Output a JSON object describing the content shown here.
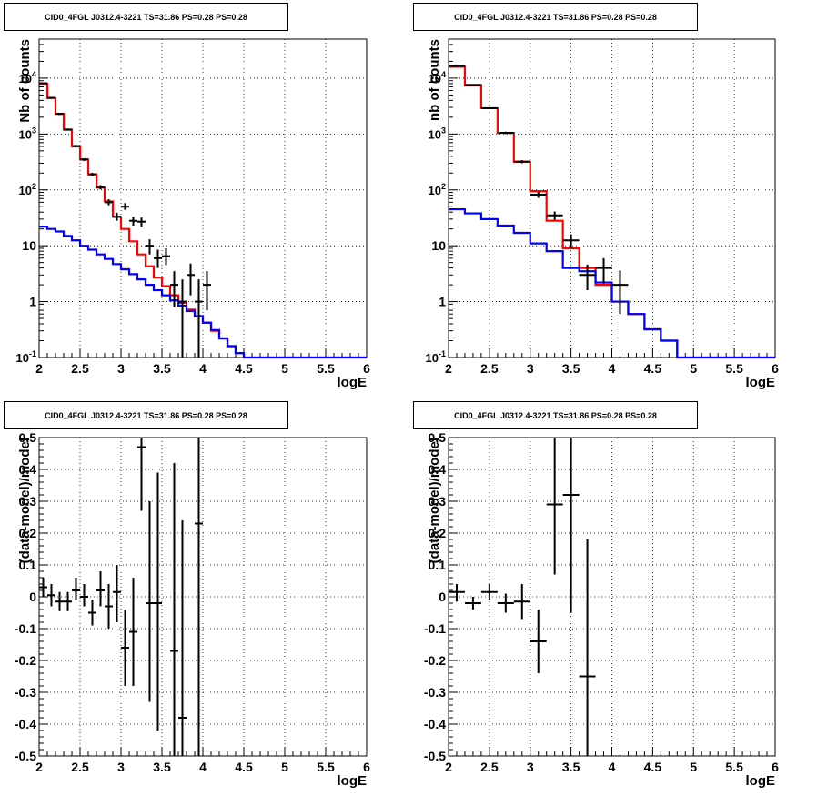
{
  "pads": [
    {
      "title": "CID0_4FGL J0312.4-3221 TS=31.86 PS=0.28 PS=0.28",
      "chart_data": {
        "type": "line",
        "xlabel": "logE",
        "ylabel": "Nb of counts",
        "xlim": [
          2,
          6
        ],
        "ylim": [
          0.1,
          50000
        ],
        "yscale": "log",
        "grid": true,
        "x_ticks": [
          "2",
          "2.5",
          "3",
          "3.5",
          "4",
          "4.5",
          "5",
          "5.5",
          "6"
        ],
        "y_ticks": [
          "10^-1",
          "1",
          "10",
          "10^2",
          "10^3",
          "10^4"
        ],
        "bin_edges": [
          2.0,
          2.1,
          2.2,
          2.3,
          2.4,
          2.5,
          2.6,
          2.7,
          2.8,
          2.9,
          3.0,
          3.1,
          3.2,
          3.3,
          3.4,
          3.5,
          3.6,
          3.7,
          3.8,
          3.9,
          4.0,
          4.1,
          4.2,
          4.3,
          4.4,
          4.5,
          4.6,
          4.7,
          4.8,
          4.9,
          5.0,
          5.1,
          5.2,
          5.3,
          5.4,
          5.5,
          5.6,
          5.7,
          5.8,
          5.9,
          6.0
        ],
        "series": [
          {
            "color": "#ff0000",
            "values": [
              8000,
              4400,
              2300,
              1200,
              600,
              350,
              190,
              110,
              62,
              33,
              20,
              12,
              7,
              4.3,
              2.7,
              1.9,
              1.3,
              0.95,
              0.72,
              0.55,
              0.42,
              0.3,
              0.22,
              0.16,
              0.12,
              0.1,
              0.1,
              0.1,
              0.1,
              0.1,
              0.1,
              0.1,
              0.1,
              0.1,
              0.1,
              0.1,
              0.1,
              0.1,
              0.1,
              0.1
            ]
          },
          {
            "color": "#0000ff",
            "values": [
              22,
              20,
              18,
              15,
              12.5,
              10,
              8.5,
              7,
              5.8,
              4.7,
              3.8,
              3.1,
              2.5,
              2,
              1.6,
              1.3,
              1.05,
              0.85,
              0.68,
              0.55,
              0.42,
              0.31,
              0.22,
              0.16,
              0.12,
              0.1,
              0.1,
              0.1,
              0.1,
              0.1,
              0.1,
              0.1,
              0.1,
              0.1,
              0.1,
              0.1,
              0.1,
              0.1,
              0.1,
              0.1
            ]
          }
        ],
        "points": [
          {
            "x": 2.05,
            "y": 8100,
            "lo": 7900,
            "hi": 8300
          },
          {
            "x": 2.15,
            "y": 4450,
            "lo": 4300,
            "hi": 4600
          },
          {
            "x": 2.25,
            "y": 2300,
            "lo": 2200,
            "hi": 2400
          },
          {
            "x": 2.35,
            "y": 1200,
            "lo": 1150,
            "hi": 1250
          },
          {
            "x": 2.45,
            "y": 610,
            "lo": 580,
            "hi": 640
          },
          {
            "x": 2.55,
            "y": 350,
            "lo": 330,
            "hi": 370
          },
          {
            "x": 2.65,
            "y": 190,
            "lo": 178,
            "hi": 202
          },
          {
            "x": 2.75,
            "y": 112,
            "lo": 102,
            "hi": 122
          },
          {
            "x": 2.85,
            "y": 60,
            "lo": 53,
            "hi": 68
          },
          {
            "x": 2.95,
            "y": 33,
            "lo": 28,
            "hi": 39
          },
          {
            "x": 3.05,
            "y": 50,
            "lo": 44,
            "hi": 58
          },
          {
            "x": 3.15,
            "y": 28,
            "lo": 23,
            "hi": 33
          },
          {
            "x": 3.25,
            "y": 27,
            "lo": 22,
            "hi": 32
          },
          {
            "x": 3.35,
            "y": 10,
            "lo": 7,
            "hi": 13
          },
          {
            "x": 3.45,
            "y": 6,
            "lo": 4,
            "hi": 8.5
          },
          {
            "x": 3.55,
            "y": 6.5,
            "lo": 4.5,
            "hi": 9
          },
          {
            "x": 3.65,
            "y": 2,
            "lo": 0.8,
            "hi": 3.5
          },
          {
            "x": 3.75,
            "y": 1,
            "lo": 0.1,
            "hi": 2.5
          },
          {
            "x": 3.85,
            "y": 3,
            "lo": 1.3,
            "hi": 4.8
          },
          {
            "x": 3.95,
            "y": 1,
            "lo": 0.1,
            "hi": 2.5
          },
          {
            "x": 4.05,
            "y": 2,
            "lo": 0.7,
            "hi": 3.5
          }
        ]
      }
    },
    {
      "title": "CID0_4FGL J0312.4-3221 TS=31.86 PS=0.28 PS=0.28",
      "chart_data": {
        "type": "line",
        "xlabel": "logE",
        "ylabel": "nb of counts",
        "xlim": [
          2,
          6
        ],
        "ylim": [
          0.1,
          50000
        ],
        "yscale": "log",
        "grid": true,
        "x_ticks": [
          "2",
          "2.5",
          "3",
          "3.5",
          "4",
          "4.5",
          "5",
          "5.5",
          "6"
        ],
        "y_ticks": [
          "10^-1",
          "1",
          "10",
          "10^2",
          "10^3",
          "10^4"
        ],
        "bin_edges": [
          2.0,
          2.2,
          2.4,
          2.6,
          2.8,
          3.0,
          3.2,
          3.4,
          3.6,
          3.8,
          4.0,
          4.2,
          4.4,
          4.6,
          4.8,
          5.0,
          5.2,
          5.4,
          5.6,
          5.8,
          6.0
        ],
        "series": [
          {
            "color": "#ff0000",
            "values": [
              16000,
              7500,
              2900,
              1050,
              320,
              95,
              28,
              9,
              4,
              2,
              1,
              0.6,
              0.32,
              0.2,
              0.1,
              0.1,
              0.1,
              0.1,
              0.1,
              0.1
            ]
          },
          {
            "color": "#0000ff",
            "values": [
              45,
              38,
              30,
              23,
              17,
              11,
              8,
              4,
              3.5,
              2.2,
              1,
              0.6,
              0.32,
              0.2,
              0.1,
              0.1,
              0.1,
              0.1,
              0.1,
              0.1
            ]
          }
        ],
        "points": [
          {
            "x": 2.1,
            "y": 16500,
            "lo": 16200,
            "hi": 16800
          },
          {
            "x": 2.3,
            "y": 7600,
            "lo": 7400,
            "hi": 7800
          },
          {
            "x": 2.5,
            "y": 2900,
            "lo": 2800,
            "hi": 3000
          },
          {
            "x": 2.7,
            "y": 1050,
            "lo": 1000,
            "hi": 1100
          },
          {
            "x": 2.9,
            "y": 320,
            "lo": 300,
            "hi": 340
          },
          {
            "x": 3.1,
            "y": 82,
            "lo": 72,
            "hi": 92
          },
          {
            "x": 3.3,
            "y": 35,
            "lo": 29,
            "hi": 41
          },
          {
            "x": 3.5,
            "y": 12.5,
            "lo": 9,
            "hi": 16
          },
          {
            "x": 3.7,
            "y": 3,
            "lo": 1.6,
            "hi": 4.6
          },
          {
            "x": 3.9,
            "y": 4,
            "lo": 2.1,
            "hi": 6
          },
          {
            "x": 4.1,
            "y": 2,
            "lo": 0.6,
            "hi": 3.6
          }
        ]
      }
    },
    {
      "title": "CID0_4FGL J0312.4-3221 TS=31.86 PS=0.28 PS=0.28",
      "chart_data": {
        "type": "scatter",
        "xlabel": "logE",
        "ylabel": "(data-model)/model",
        "xlim": [
          2,
          6
        ],
        "ylim": [
          -0.5,
          0.5
        ],
        "grid": true,
        "x_ticks": [
          "2",
          "2.5",
          "3",
          "3.5",
          "4",
          "4.5",
          "5",
          "5.5",
          "6"
        ],
        "y_ticks": [
          "-0.5",
          "-0.4",
          "-0.3",
          "-0.2",
          "-0.1",
          "0",
          "0.1",
          "0.2",
          "0.3",
          "0.4",
          "0.5"
        ],
        "xerr": 0.05,
        "points": [
          {
            "x": 2.05,
            "y": 0.03,
            "lo": 0,
            "hi": 0.06
          },
          {
            "x": 2.15,
            "y": 0.005,
            "lo": -0.03,
            "hi": 0.04
          },
          {
            "x": 2.25,
            "y": -0.015,
            "lo": -0.045,
            "hi": 0.015
          },
          {
            "x": 2.35,
            "y": -0.015,
            "lo": -0.045,
            "hi": 0.015
          },
          {
            "x": 2.45,
            "y": 0.02,
            "lo": -0.01,
            "hi": 0.06
          },
          {
            "x": 2.55,
            "y": 0,
            "lo": -0.03,
            "hi": 0.04
          },
          {
            "x": 2.65,
            "y": -0.05,
            "lo": -0.09,
            "hi": -0.01
          },
          {
            "x": 2.75,
            "y": 0.02,
            "lo": -0.03,
            "hi": 0.08
          },
          {
            "x": 2.85,
            "y": -0.03,
            "lo": -0.1,
            "hi": 0.04
          },
          {
            "x": 2.95,
            "y": 0.015,
            "lo": -0.08,
            "hi": 0.1
          },
          {
            "x": 3.05,
            "y": -0.16,
            "lo": -0.28,
            "hi": -0.04
          },
          {
            "x": 3.15,
            "y": -0.11,
            "lo": -0.28,
            "hi": 0.06
          },
          {
            "x": 3.25,
            "y": 0.47,
            "lo": 0.27,
            "hi": 0.5
          },
          {
            "x": 3.35,
            "y": -0.02,
            "lo": -0.33,
            "hi": 0.3
          },
          {
            "x": 3.45,
            "y": -0.02,
            "lo": -0.42,
            "hi": 0.39
          },
          {
            "x": 3.65,
            "y": -0.17,
            "lo": -0.5,
            "hi": 0.42
          },
          {
            "x": 3.75,
            "y": -0.38,
            "lo": -0.5,
            "hi": 0.24
          },
          {
            "x": 3.95,
            "y": 0.23,
            "lo": -0.5,
            "hi": 0.5
          }
        ]
      }
    },
    {
      "title": "CID0_4FGL J0312.4-3221 TS=31.86 PS=0.28 PS=0.28",
      "chart_data": {
        "type": "scatter",
        "xlabel": "logE",
        "ylabel": "(data-model)/model",
        "xlim": [
          2,
          6
        ],
        "ylim": [
          -0.5,
          0.5
        ],
        "grid": true,
        "x_ticks": [
          "2",
          "2.5",
          "3",
          "3.5",
          "4",
          "4.5",
          "5",
          "5.5",
          "6"
        ],
        "y_ticks": [
          "-0.5",
          "-0.4",
          "-0.3",
          "-0.2",
          "-0.1",
          "0",
          "0.1",
          "0.2",
          "0.3",
          "0.4",
          "0.5"
        ],
        "xerr": 0.1,
        "points": [
          {
            "x": 2.1,
            "y": 0.015,
            "lo": -0.015,
            "hi": 0.04
          },
          {
            "x": 2.3,
            "y": -0.02,
            "lo": -0.04,
            "hi": 0
          },
          {
            "x": 2.5,
            "y": 0.015,
            "lo": -0.01,
            "hi": 0.04
          },
          {
            "x": 2.7,
            "y": -0.02,
            "lo": -0.05,
            "hi": 0.01
          },
          {
            "x": 2.9,
            "y": -0.015,
            "lo": -0.07,
            "hi": 0.04
          },
          {
            "x": 3.1,
            "y": -0.14,
            "lo": -0.24,
            "hi": -0.04
          },
          {
            "x": 3.3,
            "y": 0.29,
            "lo": 0.07,
            "hi": 0.5
          },
          {
            "x": 3.5,
            "y": 0.32,
            "lo": -0.05,
            "hi": 0.5
          },
          {
            "x": 3.7,
            "y": -0.25,
            "lo": -0.5,
            "hi": 0.18
          }
        ]
      }
    }
  ]
}
